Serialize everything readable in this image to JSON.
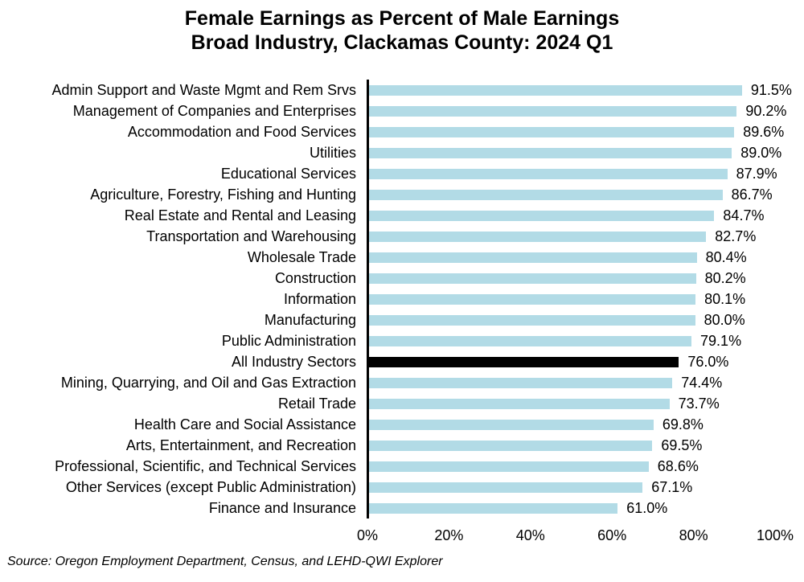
{
  "title": {
    "line1": "Female Earnings as Percent of Male Earnings",
    "line2": "Broad Industry, Clackamas County: 2024 Q1"
  },
  "source": "Source: Oregon Employment Department, Census, and LEHD-QWI Explorer",
  "colors": {
    "bar": "#B2DBE6",
    "highlight_bar": "#000000",
    "axis": "#000000",
    "text": "#000000",
    "background": "#FFFFFF"
  },
  "x_axis": {
    "tick_labels": [
      "0%",
      "20%",
      "40%",
      "60%",
      "80%",
      "100%"
    ],
    "tick_values": [
      0,
      20,
      40,
      60,
      80,
      100
    ],
    "min": 0,
    "max": 100
  },
  "chart_data": {
    "type": "bar",
    "orientation": "horizontal",
    "title": "Female Earnings as Percent of Male Earnings — Broad Industry, Clackamas County: 2024 Q1",
    "xlabel": "",
    "ylabel": "",
    "xlim": [
      0,
      100
    ],
    "grid": false,
    "legend": false,
    "highlight_category": "All Industry Sectors",
    "categories": [
      "Admin Support and Waste Mgmt and Rem Srvs",
      "Management of Companies and Enterprises",
      "Accommodation and Food Services",
      "Utilities",
      "Educational Services",
      "Agriculture, Forestry, Fishing and Hunting",
      "Real Estate and Rental and Leasing",
      "Transportation and Warehousing",
      "Wholesale Trade",
      "Construction",
      "Information",
      "Manufacturing",
      "Public Administration",
      "All Industry Sectors",
      "Mining, Quarrying, and Oil and Gas Extraction",
      "Retail Trade",
      "Health Care and Social Assistance",
      "Arts, Entertainment, and Recreation",
      "Professional, Scientific, and Technical Services",
      "Other Services (except Public Administration)",
      "Finance and Insurance"
    ],
    "values": [
      91.5,
      90.2,
      89.6,
      89.0,
      87.9,
      86.7,
      84.7,
      82.7,
      80.4,
      80.2,
      80.1,
      80.0,
      79.1,
      76.0,
      74.4,
      73.7,
      69.8,
      69.5,
      68.6,
      67.1,
      61.0
    ],
    "value_labels": [
      "91.5%",
      "90.2%",
      "89.6%",
      "89.0%",
      "87.9%",
      "86.7%",
      "84.7%",
      "82.7%",
      "80.4%",
      "80.2%",
      "80.1%",
      "80.0%",
      "79.1%",
      "76.0%",
      "74.4%",
      "73.7%",
      "69.8%",
      "69.5%",
      "68.6%",
      "67.1%",
      "61.0%"
    ]
  }
}
